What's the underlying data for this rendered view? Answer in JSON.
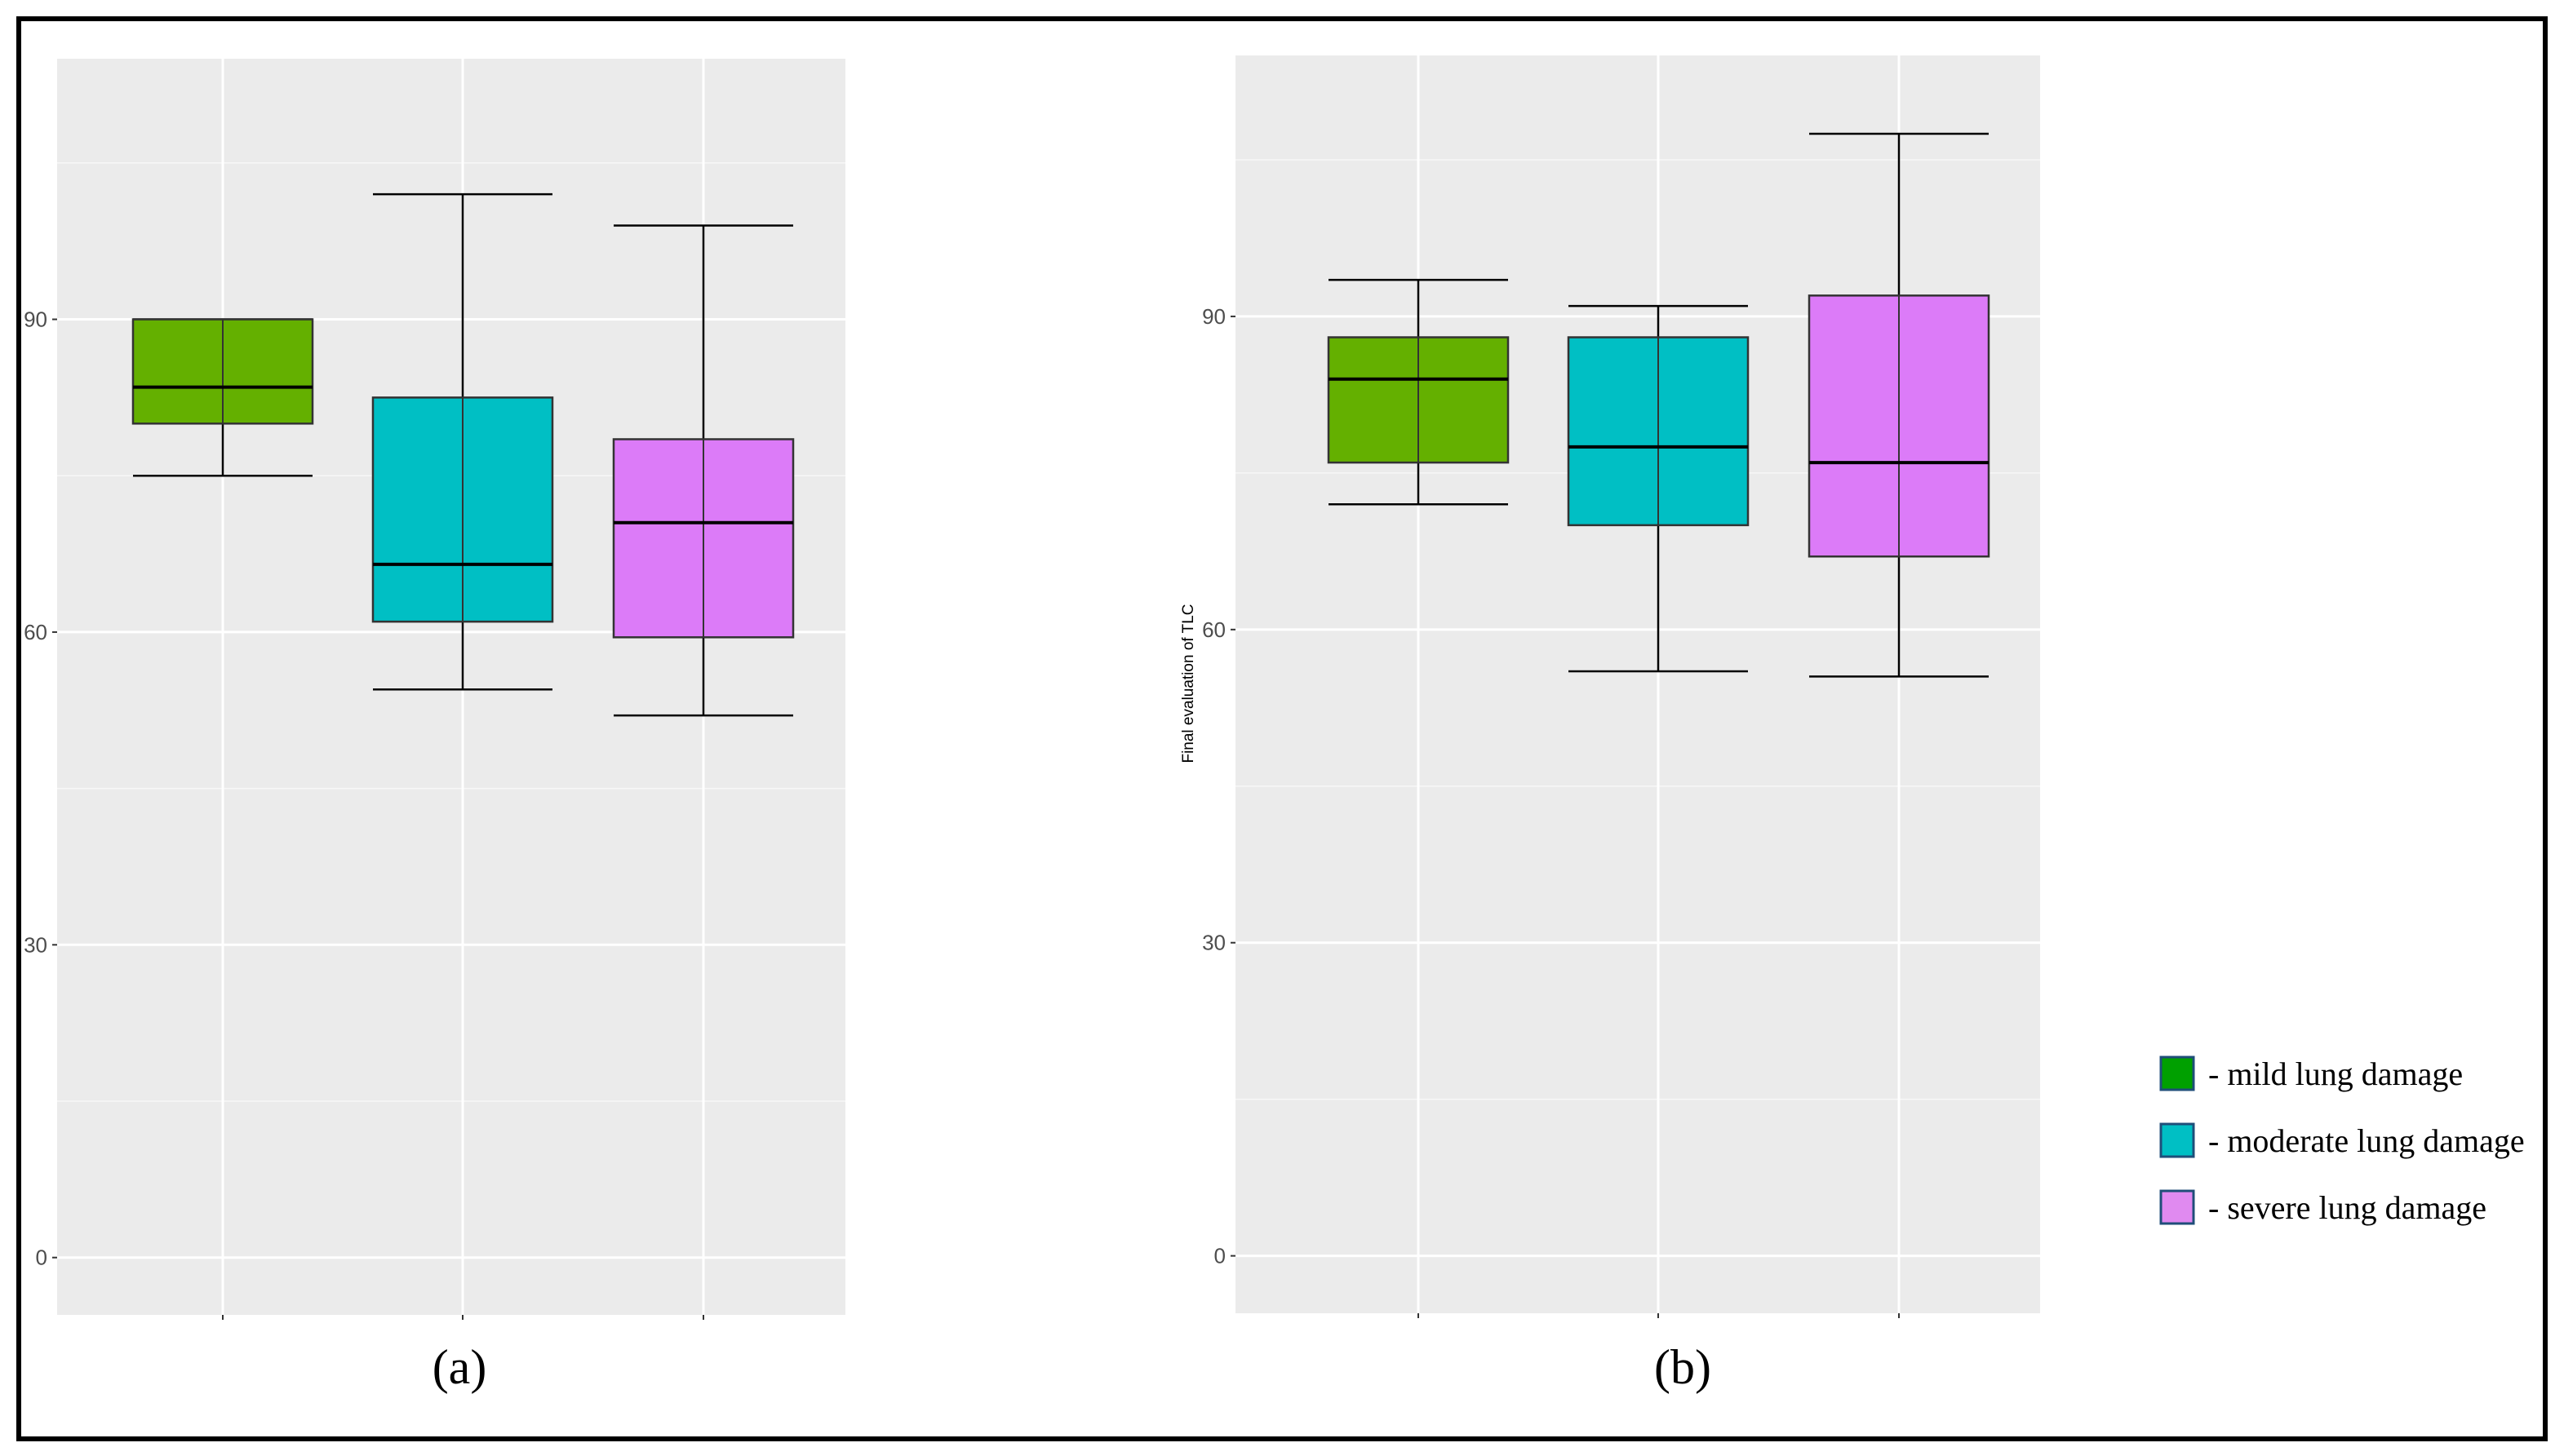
{
  "chart_data": [
    {
      "type": "boxplot",
      "panel_label": "(a)",
      "ylabel": "",
      "ylim": [
        -5.5,
        115
      ],
      "yticks": [
        0,
        30,
        60,
        90
      ],
      "categories": [
        "mild lung damage",
        "moderate lung damage",
        "severe lung damage"
      ],
      "series": [
        {
          "name": "mild lung damage",
          "min": 75,
          "q1": 80,
          "median": 83.5,
          "q3": 90,
          "max": 90
        },
        {
          "name": "moderate lung damage",
          "min": 54.5,
          "q1": 61,
          "median": 66.5,
          "q3": 82.5,
          "max": 102
        },
        {
          "name": "severe lung damage",
          "min": 52,
          "q1": 59.5,
          "median": 70.5,
          "q3": 78.5,
          "max": 99
        }
      ]
    },
    {
      "type": "boxplot",
      "panel_label": "(b)",
      "ylabel": "Final evaluation of TLC",
      "ylim": [
        -5.5,
        115
      ],
      "yticks": [
        0,
        30,
        60,
        90
      ],
      "categories": [
        "mild lung damage",
        "moderate lung damage",
        "severe lung damage"
      ],
      "series": [
        {
          "name": "mild lung damage",
          "min": 72,
          "q1": 76,
          "median": 84,
          "q3": 88,
          "max": 93.5
        },
        {
          "name": "moderate lung damage",
          "min": 56,
          "q1": 70,
          "median": 77.5,
          "q3": 88,
          "max": 91
        },
        {
          "name": "severe lung damage",
          "min": 55.5,
          "q1": 67,
          "median": 76,
          "q3": 92,
          "max": 107.5
        }
      ]
    }
  ],
  "legend": {
    "items": [
      {
        "label": "- mild lung damage",
        "color": "#00a000"
      },
      {
        "label": "- moderate lung damage",
        "color": "#00bfc4"
      },
      {
        "label": "- severe lung damage",
        "color": "#e08af0"
      }
    ]
  },
  "colors": {
    "panel_bg": "#ebebeb",
    "grid": "#ffffff",
    "box_fills": [
      "#64b000",
      "#00bfc4",
      "#dc7bf8"
    ],
    "line": "#000000"
  }
}
